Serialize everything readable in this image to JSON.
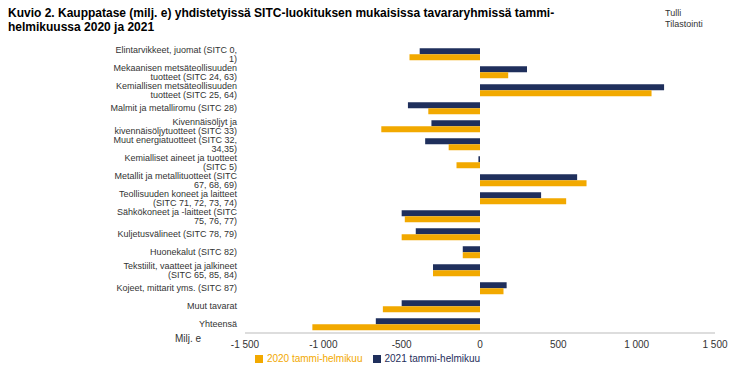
{
  "chart_data": {
    "type": "bar",
    "orientation": "horizontal",
    "title": "Kuvio 2. Kauppatase (milj. e) yhdistetyissä SITC-luokituksen mukaisissa tavararyhmissä tammi-helmikuussa 2020 ja 2021",
    "annotations": [
      "Tulli",
      "Tilastointi"
    ],
    "x_label": "Milj. e",
    "categories": [
      "Elintarvikkeet, juomat (SITC 0, 1)",
      "Mekaanisen metsäteollisuuden tuotteet (SITC 24, 63)",
      "Kemiallisen metsäteollisuuden tuotteet (SITC 25, 64)",
      "Malmit ja metalliromu (SITC 28)",
      "Kivennäisöljyt ja kivennäisöljytuotteet (SITC 33)",
      "Muut energiatuotteet (SITC 32, 34,35)",
      "Kemialliset aineet ja tuotteet (SITC 5)",
      "Metallit ja metallituotteet (SITC 67, 68, 69)",
      "Teollisuuden koneet ja laitteet (SITC 71, 72, 73, 74)",
      "Sähkökoneet ja -laitteet (SITC 75, 76, 77)",
      "Kuljetusvälineet (SITC 78, 79)",
      "Huonekalut (SITC 82)",
      "Tekstiilit, vaatteet ja jalkineet (SITC 65, 85, 84)",
      "Kojeet, mittarit yms. (SITC 87)",
      "Muut tavarat",
      "Yhteensä"
    ],
    "series": [
      {
        "name": "2021 tammi-helmikuu",
        "color": "#1f2f5c",
        "values": [
          -385,
          300,
          1175,
          -460,
          -310,
          -350,
          -10,
          620,
          390,
          -500,
          -410,
          -110,
          -300,
          170,
          -500,
          -665
        ]
      },
      {
        "name": "2020 tammi-helmikuu",
        "color": "#f2a900",
        "values": [
          -450,
          180,
          1095,
          -330,
          -630,
          -200,
          -150,
          680,
          550,
          -480,
          -500,
          -110,
          -300,
          150,
          -620,
          -1070
        ]
      }
    ],
    "xlim": [
      -1500,
      1500
    ],
    "xticks": [
      {
        "value": -1500,
        "label": "-1 500"
      },
      {
        "value": -1000,
        "label": "-1 000"
      },
      -500,
      0,
      500,
      {
        "value": 1000,
        "label": "1 000"
      },
      {
        "value": 1500,
        "label": "1 500"
      }
    ],
    "grid": false,
    "legend": "bottom"
  }
}
